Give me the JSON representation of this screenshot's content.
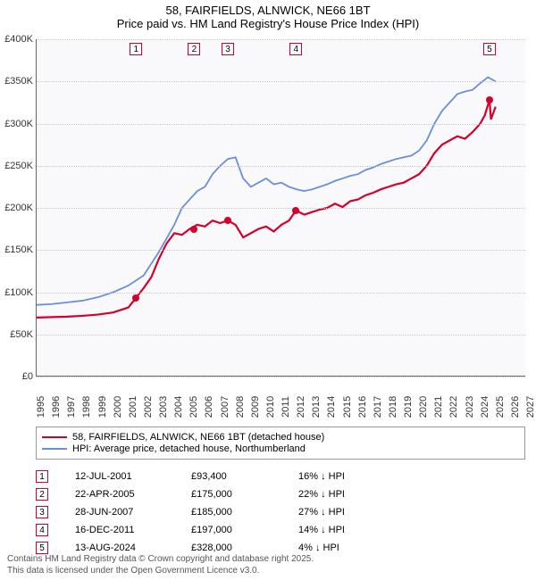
{
  "title_line1": "58, FAIRFIELDS, ALNWICK, NE66 1BT",
  "title_line2": "Price paid vs. HM Land Registry's House Price Index (HPI)",
  "chart": {
    "type": "line",
    "background_color": "#f9f9fc",
    "grid_color": "#c8c8d0",
    "xlim": [
      1995,
      2027
    ],
    "ylim": [
      0,
      400000
    ],
    "ytick_step": 50000,
    "yticks": [
      "£0",
      "£50K",
      "£100K",
      "£150K",
      "£200K",
      "£250K",
      "£300K",
      "£350K",
      "£400K"
    ],
    "xticks": [
      "1995",
      "1996",
      "1997",
      "1998",
      "1999",
      "2000",
      "2001",
      "2002",
      "2003",
      "2004",
      "2005",
      "2006",
      "2007",
      "2008",
      "2009",
      "2010",
      "2011",
      "2012",
      "2013",
      "2014",
      "2015",
      "2016",
      "2017",
      "2018",
      "2019",
      "2020",
      "2021",
      "2022",
      "2023",
      "2024",
      "2025",
      "2026",
      "2027"
    ],
    "series": [
      {
        "name": "price_paid",
        "label": "58, FAIRFIELDS, ALNWICK, NE66 1BT (detached house)",
        "color": "#d4002a",
        "line_width": 2.2,
        "points": [
          [
            1995,
            70000
          ],
          [
            1996,
            70500
          ],
          [
            1997,
            71000
          ],
          [
            1998,
            72000
          ],
          [
            1999,
            73500
          ],
          [
            2000,
            76000
          ],
          [
            2001,
            82000
          ],
          [
            2001.5,
            93400
          ],
          [
            2002,
            105000
          ],
          [
            2002.5,
            118000
          ],
          [
            2003,
            140000
          ],
          [
            2003.5,
            158000
          ],
          [
            2004,
            170000
          ],
          [
            2004.5,
            168000
          ],
          [
            2005,
            175000
          ],
          [
            2005.5,
            180000
          ],
          [
            2006,
            178000
          ],
          [
            2006.5,
            185000
          ],
          [
            2007,
            182000
          ],
          [
            2007.5,
            185000
          ],
          [
            2008,
            180000
          ],
          [
            2008.5,
            165000
          ],
          [
            2009,
            170000
          ],
          [
            2009.5,
            175000
          ],
          [
            2010,
            178000
          ],
          [
            2010.5,
            172000
          ],
          [
            2011,
            180000
          ],
          [
            2011.5,
            185000
          ],
          [
            2011.95,
            197000
          ],
          [
            2012.5,
            192000
          ],
          [
            2013,
            195000
          ],
          [
            2013.5,
            198000
          ],
          [
            2014,
            200000
          ],
          [
            2014.5,
            205000
          ],
          [
            2015,
            201000
          ],
          [
            2015.5,
            208000
          ],
          [
            2016,
            210000
          ],
          [
            2016.5,
            215000
          ],
          [
            2017,
            218000
          ],
          [
            2017.5,
            222000
          ],
          [
            2018,
            225000
          ],
          [
            2018.5,
            228000
          ],
          [
            2019,
            230000
          ],
          [
            2019.5,
            235000
          ],
          [
            2020,
            240000
          ],
          [
            2020.5,
            250000
          ],
          [
            2021,
            265000
          ],
          [
            2021.5,
            275000
          ],
          [
            2022,
            280000
          ],
          [
            2022.5,
            285000
          ],
          [
            2023,
            282000
          ],
          [
            2023.5,
            290000
          ],
          [
            2024,
            300000
          ],
          [
            2024.3,
            310000
          ],
          [
            2024.6,
            328000
          ],
          [
            2024.7,
            305000
          ],
          [
            2025,
            320000
          ]
        ]
      },
      {
        "name": "hpi",
        "label": "HPI: Average price, detached house, Northumberland",
        "color": "#6a8fd8",
        "line_width": 1.8,
        "points": [
          [
            1995,
            85000
          ],
          [
            1996,
            86000
          ],
          [
            1997,
            88000
          ],
          [
            1998,
            90000
          ],
          [
            1999,
            94000
          ],
          [
            2000,
            100000
          ],
          [
            2001,
            108000
          ],
          [
            2002,
            120000
          ],
          [
            2003,
            148000
          ],
          [
            2004,
            180000
          ],
          [
            2004.5,
            200000
          ],
          [
            2005,
            210000
          ],
          [
            2005.5,
            220000
          ],
          [
            2006,
            225000
          ],
          [
            2006.5,
            240000
          ],
          [
            2007,
            250000
          ],
          [
            2007.5,
            258000
          ],
          [
            2008,
            260000
          ],
          [
            2008.5,
            235000
          ],
          [
            2009,
            225000
          ],
          [
            2009.5,
            230000
          ],
          [
            2010,
            235000
          ],
          [
            2010.5,
            228000
          ],
          [
            2011,
            230000
          ],
          [
            2011.5,
            225000
          ],
          [
            2012,
            222000
          ],
          [
            2012.5,
            220000
          ],
          [
            2013,
            222000
          ],
          [
            2013.5,
            225000
          ],
          [
            2014,
            228000
          ],
          [
            2014.5,
            232000
          ],
          [
            2015,
            235000
          ],
          [
            2015.5,
            238000
          ],
          [
            2016,
            240000
          ],
          [
            2016.5,
            245000
          ],
          [
            2017,
            248000
          ],
          [
            2017.5,
            252000
          ],
          [
            2018,
            255000
          ],
          [
            2018.5,
            258000
          ],
          [
            2019,
            260000
          ],
          [
            2019.5,
            262000
          ],
          [
            2020,
            268000
          ],
          [
            2020.5,
            280000
          ],
          [
            2021,
            300000
          ],
          [
            2021.5,
            315000
          ],
          [
            2022,
            325000
          ],
          [
            2022.5,
            335000
          ],
          [
            2023,
            338000
          ],
          [
            2023.5,
            340000
          ],
          [
            2024,
            348000
          ],
          [
            2024.5,
            355000
          ],
          [
            2025,
            350000
          ]
        ]
      }
    ],
    "markers": [
      {
        "n": "1",
        "year": 2001.5,
        "price": 93400,
        "flag_color": "#d4002a"
      },
      {
        "n": "2",
        "year": 2005.3,
        "price": 175000,
        "flag_color": "#d4002a"
      },
      {
        "n": "3",
        "year": 2007.5,
        "price": 185000,
        "flag_color": "#d4002a"
      },
      {
        "n": "4",
        "year": 2011.95,
        "price": 197000,
        "flag_color": "#d4002a"
      },
      {
        "n": "5",
        "year": 2024.6,
        "price": 328000,
        "flag_color": "#d4002a"
      }
    ],
    "dot_color": "#d4002a"
  },
  "table": {
    "rows": [
      {
        "n": "1",
        "date": "12-JUL-2001",
        "price": "£93,400",
        "pct": "16% ↓ HPI",
        "flag_color": "#d4002a"
      },
      {
        "n": "2",
        "date": "22-APR-2005",
        "price": "£175,000",
        "pct": "22% ↓ HPI",
        "flag_color": "#d4002a"
      },
      {
        "n": "3",
        "date": "28-JUN-2007",
        "price": "£185,000",
        "pct": "27% ↓ HPI",
        "flag_color": "#d4002a"
      },
      {
        "n": "4",
        "date": "16-DEC-2011",
        "price": "£197,000",
        "pct": "14% ↓ HPI",
        "flag_color": "#d4002a"
      },
      {
        "n": "5",
        "date": "13-AUG-2024",
        "price": "£328,000",
        "pct": "4% ↓ HPI",
        "flag_color": "#d4002a"
      }
    ]
  },
  "footer_line1": "Contains HM Land Registry data © Crown copyright and database right 2025.",
  "footer_line2": "This data is licensed under the Open Government Licence v3.0."
}
